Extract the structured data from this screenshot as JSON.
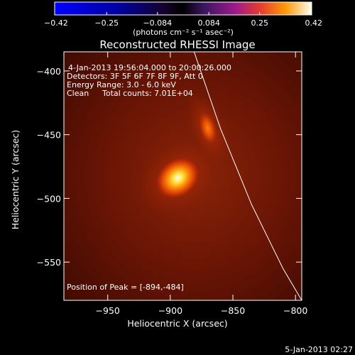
{
  "chart_data": {
    "type": "heatmap",
    "title": "Reconstructed RHESSI Image",
    "xlabel": "Heliocentric X (arcsec)",
    "ylabel": "Heliocentric Y (arcsec)",
    "xlim": [
      -985,
      -795
    ],
    "ylim": [
      -580,
      -385
    ],
    "x_ticks": [
      -950,
      -900,
      -850,
      -800
    ],
    "y_ticks": [
      -400,
      -450,
      -500,
      -550
    ],
    "x_tick_labels": [
      "−950",
      "−900",
      "−850",
      "−800"
    ],
    "y_tick_labels": [
      "−400",
      "−450",
      "−500",
      "−550"
    ],
    "colorbar": {
      "min": -0.42,
      "max": 0.42,
      "ticks": [
        -0.42,
        -0.25,
        -0.084,
        0.084,
        0.25,
        0.42
      ],
      "tick_labels": [
        "−0.42",
        "−0.25",
        "−0.084",
        "0.084",
        "0.25",
        "0.42"
      ],
      "label": "(photons cm⁻² s⁻¹ asec⁻²)"
    },
    "sources": [
      {
        "x": -894,
        "y": -484,
        "peak": 0.42
      },
      {
        "x": -870,
        "y": -445,
        "peak": 0.25
      }
    ],
    "limb_curve": [
      {
        "x": -881,
        "y": -385
      },
      {
        "x": -860,
        "y": -445
      },
      {
        "x": -835,
        "y": -505
      },
      {
        "x": -810,
        "y": -555
      },
      {
        "x": -795,
        "y": -580
      }
    ],
    "annotations": {
      "time": "4-Jan-2013 19:56:04.000 to 20:00:26.000",
      "detectors": "Detectors: 3F 5F 6F 7F 8F 9F, Att 0",
      "energy": "Energy Range: 3.0 - 6.0 keV",
      "clean": "Clean",
      "counts": "Total counts: 7.01E+04",
      "peak_position": "Position of Peak = [-894,-484]"
    },
    "footer_date": "5-Jan-2013 02:27"
  }
}
